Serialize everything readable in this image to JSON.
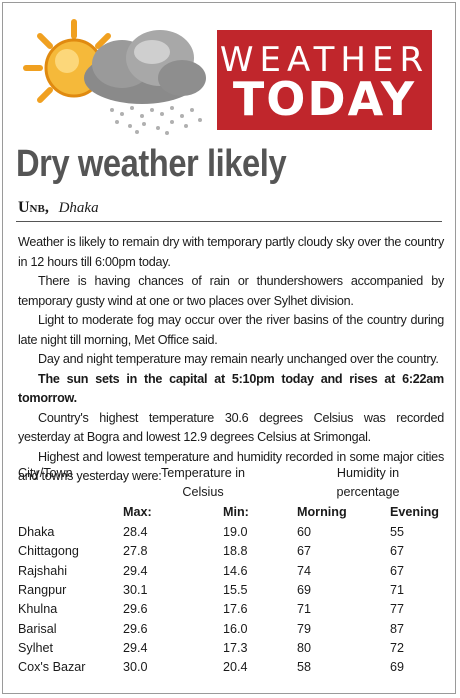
{
  "logo": {
    "line1": "WEATHER",
    "line2": "TODAY"
  },
  "headline": "Dry weather likely",
  "byline": {
    "agency": "Unb,",
    "city": "Dhaka"
  },
  "paragraphs": [
    "Weather is likely to remain dry with temporary partly cloudy sky over the country in 12 hours till 6:00pm today.",
    "There is having chances of rain or thundershowers accompanied by temporary gusty wind at one or two places over Sylhet division.",
    "Light to moderate fog may occur over the river basins of the country during late night till morning, Met Office said.",
    "Day and night temperature may remain nearly unchanged over the country.",
    "The sun sets in the capital at 5:10pm today and rises at 6:22am tomorrow.",
    "Country's highest temperature 30.6 degrees Celsius was recorded yesterday at Bogra and lowest 12.9 degrees Celsius at Srimongal.",
    "Highest and lowest temperature and humidity recorded in some major cities and towns yesterday were:"
  ],
  "table": {
    "col_city": "City/Town",
    "col_temp_line1": "Temperature in",
    "col_temp_line2": "Celsius",
    "col_hum_line1": "Humidity in",
    "col_hum_line2": "percentage",
    "sub_max": "Max:",
    "sub_min": "Min:",
    "sub_morning": "Morning",
    "sub_evening": "Evening",
    "rows": [
      [
        "Dhaka",
        "28.4",
        "19.0",
        "60",
        "55"
      ],
      [
        "Chittagong",
        "27.8",
        "18.8",
        "67",
        "67"
      ],
      [
        "Rajshahi",
        "29.4",
        "14.6",
        "74",
        "67"
      ],
      [
        "Rangpur",
        "30.1",
        "15.5",
        "69",
        "71"
      ],
      [
        "Khulna",
        "29.6",
        "17.6",
        "71",
        "77"
      ],
      [
        "Barisal",
        "29.6",
        "16.0",
        "79",
        "87"
      ],
      [
        "Sylhet",
        "29.4",
        "17.3",
        "80",
        "72"
      ],
      [
        "Cox's Bazar",
        "30.0",
        "20.4",
        "58",
        "69"
      ]
    ]
  },
  "colors": {
    "logo_red": "#c0262c",
    "sun": "#f0a020",
    "cloud": "#7a7a7a"
  }
}
